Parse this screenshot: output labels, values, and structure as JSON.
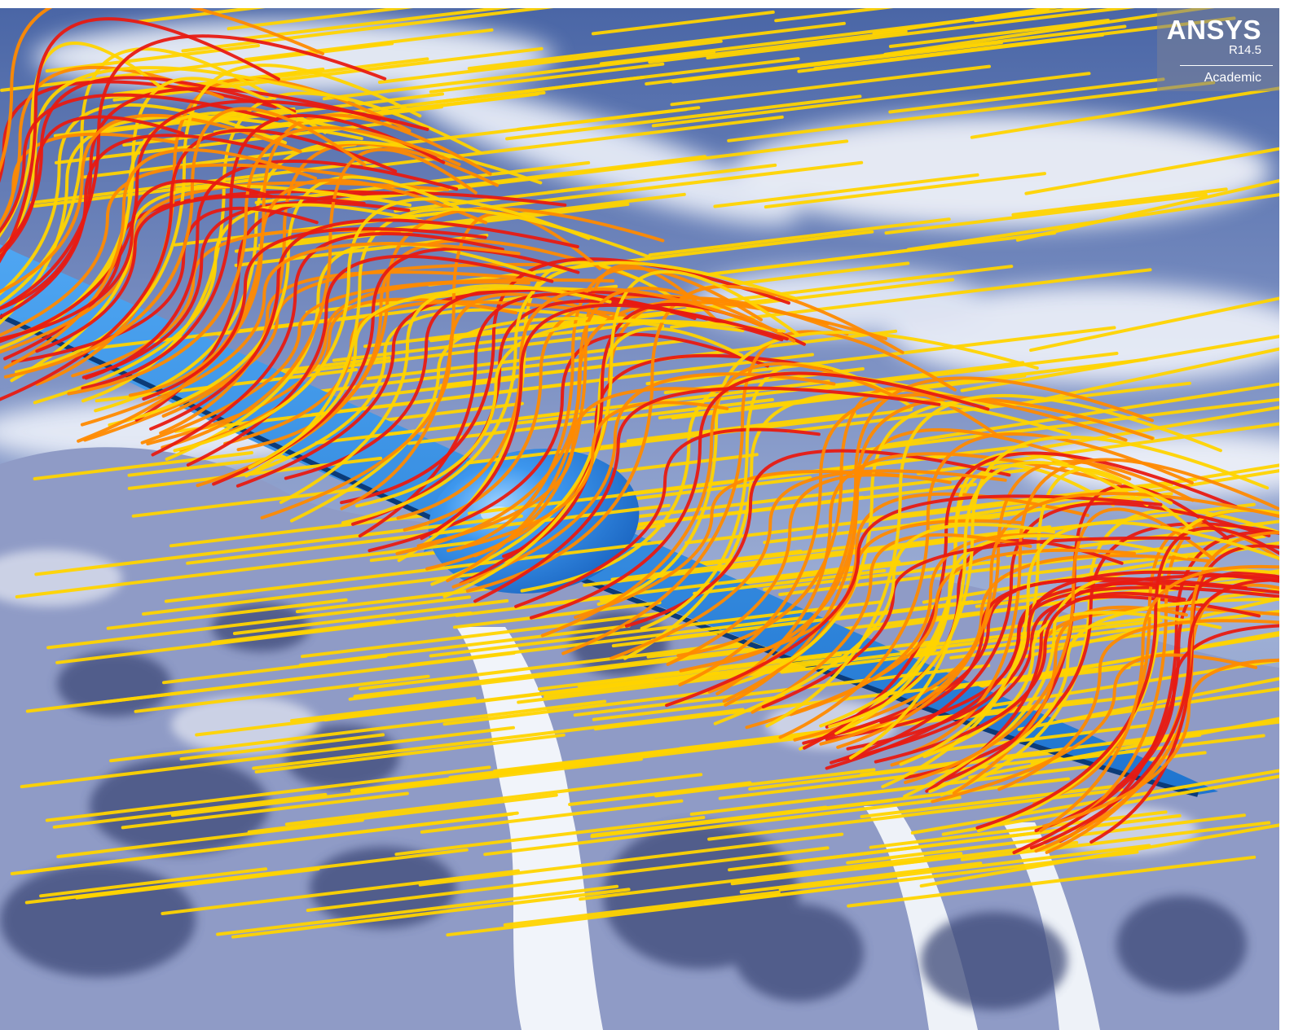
{
  "watermark": {
    "brand": "ANSYS",
    "version": "R14.5",
    "edition": "Academic"
  },
  "scene": {
    "subject": "glider-airfoil-icon",
    "flow_colors": {
      "low": "#ffd400",
      "mid": "#ff8a00",
      "high": "#e81a12"
    },
    "body_color": "#2b8be6",
    "sky_color": "#4e6aa8",
    "snow_color": "#eef2f8"
  }
}
